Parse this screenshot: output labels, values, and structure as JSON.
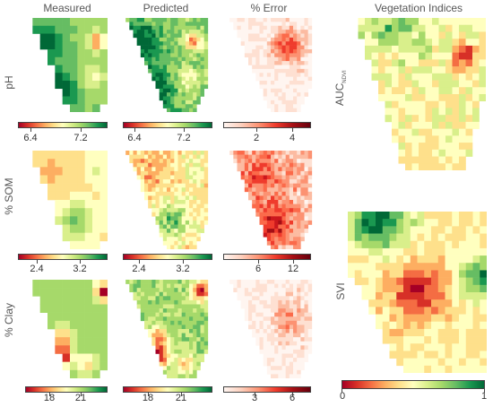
{
  "columns": {
    "measured": "Measured",
    "predicted": "Predicted",
    "error": "% Error",
    "vegetation": "Vegetation Indices"
  },
  "rows": {
    "ph": "pH",
    "som": "% SOM",
    "clay": "% Clay"
  },
  "vegetation_labels": {
    "auc_main": "AUC",
    "auc_sub": "NDVI",
    "svi": "SVI"
  },
  "colorbars": {
    "ph_measured": [
      "6.4",
      "7.2"
    ],
    "ph_predicted": [
      "6.4",
      "7.2"
    ],
    "ph_error": [
      "2",
      "4"
    ],
    "som_measured": [
      "2.4",
      "3.2"
    ],
    "som_predicted": [
      "2.4",
      "3.2"
    ],
    "som_error": [
      "6",
      "12"
    ],
    "clay_measured": [
      "18",
      "21"
    ],
    "clay_predicted": [
      "18",
      "21"
    ],
    "clay_error": [
      "3",
      "6"
    ],
    "vegetation": [
      "0",
      "1"
    ]
  },
  "colors": {
    "low": "#a50026",
    "mid": "#ffffbf",
    "high": "#006837",
    "error_low": "#fff5f0",
    "error_high": "#67000d"
  }
}
